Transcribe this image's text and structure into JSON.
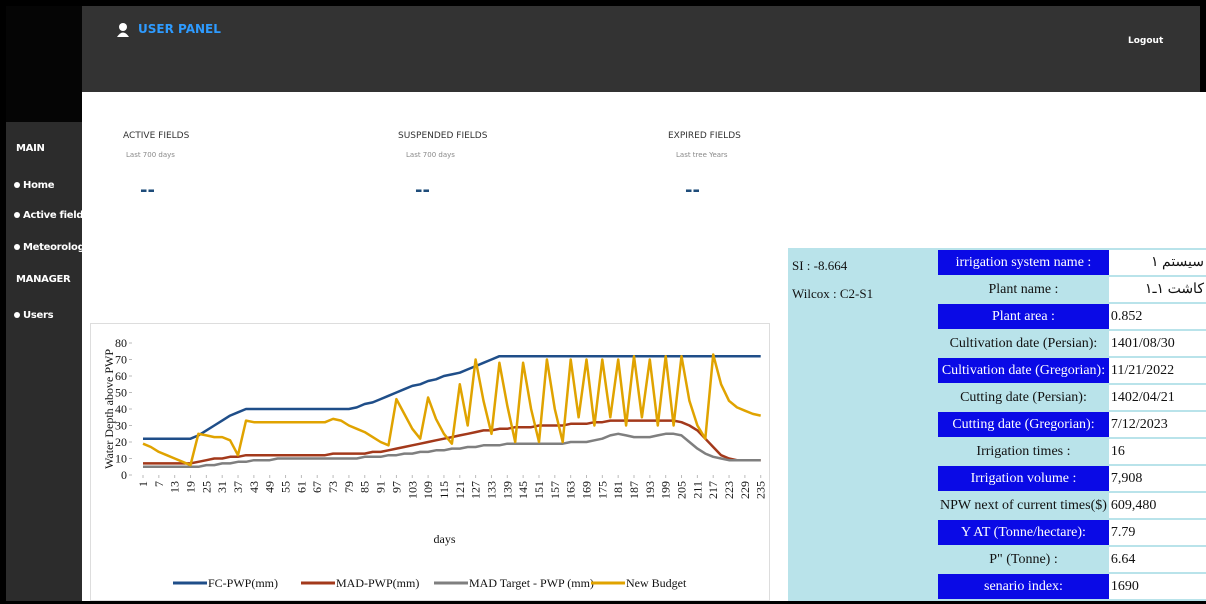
{
  "header": {
    "title": "USER PANEL",
    "logout": "Logout"
  },
  "sidebar": {
    "main": "MAIN",
    "items": [
      "Home",
      "Active fields",
      "Meteorological"
    ],
    "manager": "MANAGER",
    "manager_items": [
      "Users"
    ]
  },
  "cards": [
    {
      "title": "ACTIVE FIELDS",
      "subtitle": "Last 700 days",
      "value": "--"
    },
    {
      "title": "SUSPENDED FIELDS",
      "subtitle": "Last 700 days",
      "value": "--"
    },
    {
      "title": "EXPIRED FIELDS",
      "subtitle": "Last tree Years",
      "value": "--"
    }
  ],
  "info": {
    "si": "SI :  -8.664",
    "wilcox": "Wilcox : C2-S1"
  },
  "table": {
    "rows": [
      [
        "irrigation system name :",
        "سیستم ۱"
      ],
      [
        "Plant name :",
        "کاشت ۱ـ۱"
      ],
      [
        "Plant area :",
        "0.852"
      ],
      [
        "Cultivation date (Persian):",
        "1401/08/30"
      ],
      [
        "Cultivation date (Gregorian):",
        "11/21/2022"
      ],
      [
        "Cutting date (Persian):",
        "1402/04/21"
      ],
      [
        "Cutting date  (Gregorian):",
        "7/12/2023"
      ],
      [
        "Irrigation times :",
        "16"
      ],
      [
        "Irrigation volume :",
        "7,908"
      ],
      [
        "NPW next of current times($)",
        "609,480"
      ],
      [
        "Y AT (Tonne/hectare):",
        "7.79"
      ],
      [
        "P\" (Tonne) :",
        "6.64"
      ],
      [
        "senario index:",
        "1690"
      ]
    ]
  },
  "chart_data": {
    "type": "line",
    "y_label": "Water Depth above PWP",
    "x_label": "days",
    "xlim": [
      1,
      237
    ],
    "ylim": [
      0,
      80
    ],
    "xticks": [
      1,
      7,
      13,
      19,
      25,
      31,
      37,
      43,
      49,
      55,
      61,
      67,
      73,
      79,
      85,
      91,
      97,
      103,
      109,
      115,
      121,
      127,
      133,
      139,
      145,
      151,
      157,
      163,
      169,
      175,
      181,
      187,
      193,
      199,
      205,
      211,
      217,
      223,
      229,
      235
    ],
    "yticks": [
      0,
      10,
      20,
      30,
      40,
      50,
      60,
      70,
      80
    ],
    "x": [
      1,
      4,
      7,
      10,
      13,
      16,
      19,
      22,
      25,
      28,
      31,
      34,
      37,
      40,
      43,
      46,
      49,
      52,
      55,
      58,
      61,
      64,
      67,
      70,
      73,
      76,
      79,
      82,
      85,
      88,
      91,
      94,
      97,
      100,
      103,
      106,
      109,
      112,
      115,
      118,
      121,
      124,
      127,
      130,
      133,
      136,
      139,
      142,
      145,
      148,
      151,
      154,
      157,
      160,
      163,
      166,
      169,
      172,
      175,
      178,
      181,
      184,
      187,
      190,
      193,
      196,
      199,
      202,
      205,
      208,
      211,
      214,
      217,
      220,
      223,
      226,
      229,
      232,
      235
    ],
    "series": [
      {
        "name": "FC-PWP(mm)",
        "color": "#1f4e89",
        "values": [
          22,
          22,
          22,
          22,
          22,
          22,
          22,
          24,
          27,
          30,
          33,
          36,
          38,
          40,
          40,
          40,
          40,
          40,
          40,
          40,
          40,
          40,
          40,
          40,
          40,
          40,
          40,
          41,
          43,
          44,
          46,
          48,
          50,
          52,
          54,
          55,
          57,
          58,
          60,
          61,
          62,
          64,
          66,
          68,
          70,
          72,
          72,
          72,
          72,
          72,
          72,
          72,
          72,
          72,
          72,
          72,
          72,
          72,
          72,
          72,
          72,
          72,
          72,
          72,
          72,
          72,
          72,
          72,
          72,
          72,
          72,
          72,
          72,
          72,
          72,
          72,
          72,
          72,
          72
        ]
      },
      {
        "name": "MAD-PWP(mm)",
        "color": "#a3391b",
        "values": [
          7,
          7,
          7,
          7,
          7,
          7,
          7,
          8,
          9,
          10,
          10,
          11,
          11,
          12,
          12,
          12,
          12,
          12,
          12,
          12,
          12,
          12,
          12,
          12,
          13,
          13,
          13,
          13,
          13,
          14,
          14,
          15,
          16,
          17,
          18,
          19,
          20,
          21,
          22,
          23,
          24,
          25,
          26,
          27,
          27,
          28,
          28,
          29,
          29,
          29,
          30,
          30,
          30,
          30,
          31,
          31,
          31,
          32,
          32,
          33,
          33,
          33,
          33,
          33,
          33,
          33,
          33,
          33,
          32,
          30,
          27,
          22,
          17,
          12,
          10,
          9,
          9,
          9,
          9
        ]
      },
      {
        "name": "MAD Target - PWP (mm)",
        "color": "#7f7f7f",
        "values": [
          5,
          5,
          5,
          5,
          5,
          5,
          5,
          5,
          6,
          6,
          7,
          7,
          8,
          8,
          9,
          9,
          9,
          10,
          10,
          10,
          10,
          10,
          10,
          10,
          10,
          10,
          10,
          10,
          11,
          11,
          11,
          12,
          12,
          13,
          13,
          14,
          14,
          15,
          15,
          16,
          16,
          17,
          17,
          18,
          18,
          18,
          19,
          19,
          19,
          19,
          19,
          19,
          19,
          19,
          20,
          20,
          20,
          21,
          22,
          24,
          25,
          24,
          23,
          23,
          23,
          24,
          25,
          25,
          24,
          20,
          16,
          13,
          11,
          10,
          9,
          9,
          9,
          9,
          9
        ]
      },
      {
        "name": "New Budget",
        "color": "#e0a300",
        "values": [
          19,
          17,
          14,
          12,
          10,
          8,
          6,
          25,
          24,
          23,
          23,
          21,
          12,
          33,
          32,
          32,
          32,
          32,
          32,
          32,
          32,
          32,
          32,
          32,
          34,
          33,
          30,
          28,
          26,
          23,
          20,
          18,
          46,
          37,
          28,
          22,
          47,
          34,
          25,
          19,
          55,
          30,
          70,
          45,
          25,
          68,
          42,
          20,
          68,
          40,
          20,
          70,
          40,
          20,
          70,
          35,
          70,
          30,
          70,
          35,
          70,
          30,
          72,
          35,
          70,
          30,
          72,
          30,
          72,
          45,
          30,
          22,
          73,
          55,
          45,
          41,
          39,
          37,
          36
        ]
      }
    ]
  }
}
